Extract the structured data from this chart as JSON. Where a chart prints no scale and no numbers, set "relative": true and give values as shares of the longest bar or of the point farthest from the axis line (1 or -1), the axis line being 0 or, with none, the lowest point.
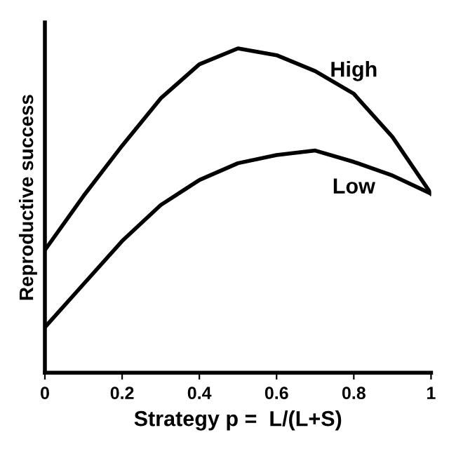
{
  "chart_data": {
    "type": "line",
    "xlabel": "Strategy p =  L/(L+S)",
    "ylabel": "Reproductive success",
    "relative": true,
    "x": [
      0,
      0.1,
      0.2,
      0.3,
      0.4,
      0.5,
      0.6,
      0.7,
      0.8,
      0.9,
      1.0
    ],
    "xlim": [
      0,
      1
    ],
    "xticks": [
      0,
      0.2,
      0.4,
      0.6,
      0.8,
      1
    ],
    "series": [
      {
        "name": "High",
        "color": "#000000",
        "values": [
          0.378,
          0.545,
          0.7,
          0.846,
          0.951,
          1.0,
          0.979,
          0.93,
          0.86,
          0.727,
          0.552
        ]
      },
      {
        "name": "Low",
        "color": "#000000",
        "values": [
          0.14,
          0.273,
          0.406,
          0.517,
          0.594,
          0.646,
          0.671,
          0.685,
          0.65,
          0.608,
          0.552
        ]
      }
    ],
    "grid": false,
    "legend": false,
    "marker": "none",
    "line_style": "solid",
    "tick_labels": "x"
  }
}
